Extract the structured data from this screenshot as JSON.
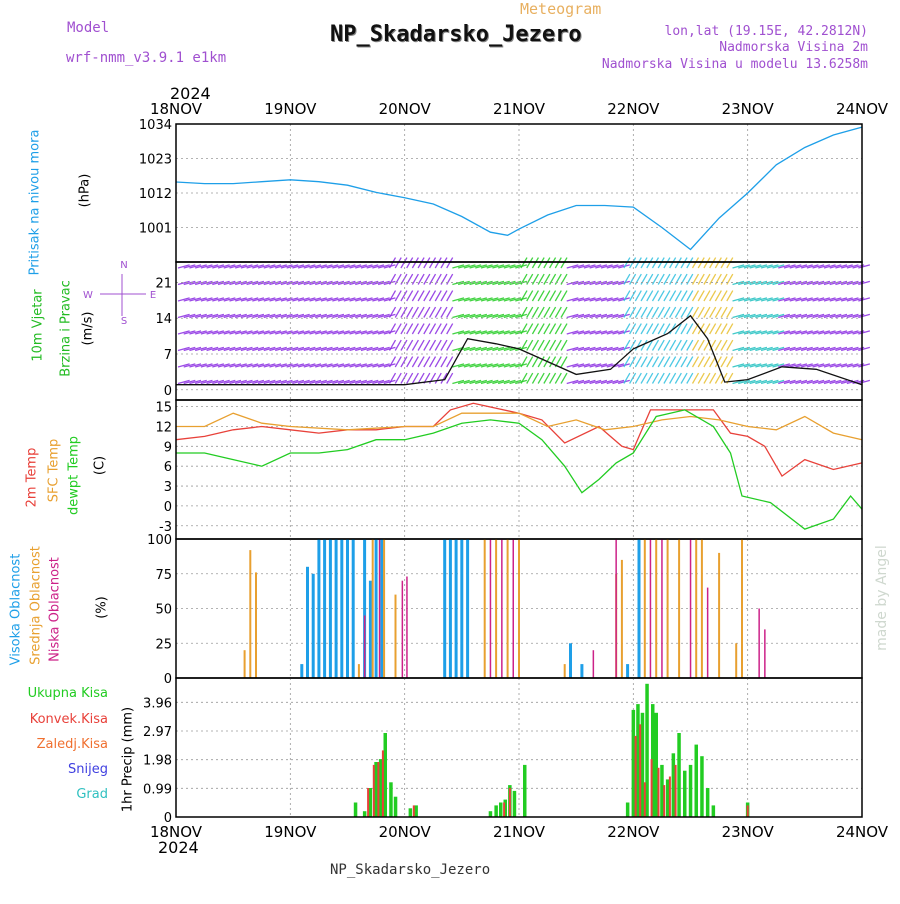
{
  "header": {
    "model_label": "Model",
    "model_name": "wrf-nmm_v3.9.1  e1km",
    "meteogram": "Meteogram",
    "station": "NP_Skadarsko_Jezero",
    "lonlat": "lon,lat (19.15E, 42.2812N)",
    "altitude": "Nadmorska Visina 2m",
    "model_altitude": "Nadmorska Visina u modelu 13.6258m",
    "footer_station": "NP_Skadarsko_Jezero",
    "watermark": "made by Angel"
  },
  "time_axis": {
    "year": "2024",
    "ticks": [
      "18NOV",
      "19NOV",
      "20NOV",
      "21NOV",
      "22NOV",
      "23NOV",
      "24NOV"
    ]
  },
  "colors": {
    "pressure": "#1e9fe8",
    "wind_label": "#22bb22",
    "temp2m": "#e8413a",
    "sfc_temp": "#e8a030",
    "dewpoint": "#22cc22",
    "high_cloud": "#1e9fe8",
    "mid_cloud": "#e8a030",
    "low_cloud": "#cc2288",
    "purple_text": "#a050d0",
    "total_precip": "#22cc22",
    "conv_precip": "#e8413a"
  },
  "chart_data": [
    {
      "type": "line",
      "panel": "pressure",
      "side_labels": [
        "Pritisak na nivou mora",
        "(hPa)"
      ],
      "ylim": [
        990,
        1034
      ],
      "yticks": [
        "1034",
        "1023",
        "1012",
        "1001"
      ],
      "ytick_values": [
        1034,
        1023,
        1012,
        1001
      ],
      "series": [
        {
          "x": [
            0,
            0.25,
            0.5,
            0.75,
            1.0,
            1.25,
            1.5,
            1.75,
            2.0,
            2.25,
            2.5,
            2.75,
            2.9,
            3.0,
            3.25,
            3.5,
            3.75,
            4.0,
            4.25,
            4.5,
            4.75,
            5.0,
            5.25,
            5.5,
            5.75,
            6.0
          ],
          "values": [
            1015.5,
            1015.0,
            1015.0,
            1015.6,
            1016.2,
            1015.6,
            1014.5,
            1012.2,
            1010.5,
            1008.5,
            1004.5,
            999.5,
            998.5,
            1000.5,
            1005.0,
            1008.0,
            1008.0,
            1007.5,
            1001.0,
            994.0,
            1004.0,
            1012.0,
            1021.0,
            1026.5,
            1030.5,
            1033.0
          ]
        }
      ]
    },
    {
      "type": "line",
      "panel": "wind",
      "side_labels": [
        "10m Vjetar",
        "Brzina i Pravac",
        "(m/s)"
      ],
      "compass": [
        "N",
        "E",
        "W",
        "S"
      ],
      "ylim": [
        -2,
        25
      ],
      "yticks": [
        "21",
        "14",
        "7",
        "0"
      ],
      "ytick_values": [
        21,
        14,
        7,
        0
      ],
      "series": [
        {
          "x": [
            0,
            1.0,
            2.0,
            2.35,
            2.55,
            2.8,
            3.0,
            3.5,
            3.8,
            4.0,
            4.3,
            4.5,
            4.65,
            4.8,
            5.0,
            5.3,
            5.6,
            6.0
          ],
          "values": [
            1.0,
            1.0,
            1.0,
            2.0,
            10.0,
            9.0,
            8.0,
            3.0,
            4.0,
            8.0,
            11.0,
            14.5,
            10.0,
            1.5,
            2.0,
            4.5,
            4.0,
            1.0
          ]
        }
      ]
    },
    {
      "type": "line",
      "panel": "temperature",
      "side_labels": [
        "2m Temp",
        "SFC Temp",
        "dewpt Temp",
        "(C)"
      ],
      "ylim": [
        -5,
        16
      ],
      "yticks": [
        "15",
        "12",
        "9",
        "6",
        "3",
        "0",
        "-3"
      ],
      "ytick_values": [
        15,
        12,
        9,
        6,
        3,
        0,
        -3
      ],
      "series": [
        {
          "name": "2m Temp",
          "x": [
            0,
            0.25,
            0.5,
            0.75,
            1.0,
            1.25,
            1.5,
            1.75,
            2.0,
            2.25,
            2.4,
            2.6,
            3.0,
            3.2,
            3.4,
            3.7,
            3.9,
            4.0,
            4.15,
            4.5,
            4.7,
            4.85,
            5.0,
            5.15,
            5.3,
            5.5,
            5.75,
            6.0
          ],
          "values": [
            10.0,
            10.5,
            11.5,
            12.0,
            11.5,
            11.0,
            11.5,
            11.5,
            12.0,
            12.0,
            14.5,
            15.5,
            14.0,
            13.0,
            9.5,
            12.0,
            9.0,
            8.5,
            14.5,
            14.5,
            14.5,
            11.0,
            10.5,
            9.0,
            4.5,
            7.0,
            5.5,
            6.5
          ]
        },
        {
          "name": "SFC Temp",
          "x": [
            0,
            0.25,
            0.5,
            0.75,
            1.0,
            1.5,
            2.0,
            2.25,
            2.5,
            3.0,
            3.25,
            3.5,
            3.75,
            4.0,
            4.25,
            4.5,
            4.75,
            5.0,
            5.25,
            5.5,
            5.75,
            6.0
          ],
          "values": [
            12.0,
            12.0,
            14.0,
            12.5,
            12.0,
            11.5,
            12.0,
            12.0,
            14.0,
            14.0,
            12.0,
            13.0,
            11.5,
            12.0,
            13.0,
            13.5,
            13.0,
            12.0,
            11.5,
            13.5,
            11.0,
            10.0
          ]
        },
        {
          "name": "dewpt Temp",
          "x": [
            0,
            0.25,
            0.5,
            0.75,
            1.0,
            1.25,
            1.5,
            1.75,
            2.0,
            2.25,
            2.5,
            2.75,
            3.0,
            3.2,
            3.4,
            3.55,
            3.7,
            3.85,
            4.0,
            4.2,
            4.45,
            4.5,
            4.7,
            4.85,
            4.95,
            5.2,
            5.5,
            5.75,
            5.9,
            6.0
          ],
          "values": [
            8.0,
            8.0,
            7.0,
            6.0,
            8.0,
            8.0,
            8.5,
            10.0,
            10.0,
            11.0,
            12.5,
            13.0,
            12.5,
            10.0,
            6.0,
            2.0,
            4.0,
            6.5,
            8.0,
            13.5,
            14.5,
            14.0,
            12.0,
            8.0,
            1.5,
            0.5,
            -3.5,
            -2.0,
            1.5,
            -0.5
          ]
        }
      ]
    },
    {
      "type": "bar",
      "panel": "clouds",
      "side_labels": [
        "Visoka Oblacnost",
        "Srednja Oblacnost",
        "Niska Oblacnost",
        "(%)"
      ],
      "ylim": [
        0,
        100
      ],
      "yticks": [
        "100",
        "75",
        "50",
        "25",
        "0"
      ],
      "ytick_values": [
        100,
        75,
        50,
        25,
        0
      ],
      "series": [
        {
          "name": "Visoka Oblacnost",
          "x": [
            1.1,
            1.15,
            1.2,
            1.25,
            1.3,
            1.35,
            1.4,
            1.45,
            1.5,
            1.55,
            1.65,
            1.7,
            1.75,
            1.8,
            2.35,
            2.4,
            2.45,
            2.5,
            2.55,
            3.45,
            3.55,
            3.95,
            4.05
          ],
          "values": [
            10,
            80,
            75,
            100,
            100,
            100,
            100,
            100,
            100,
            100,
            100,
            70,
            100,
            100,
            100,
            100,
            100,
            100,
            100,
            25,
            10,
            10,
            100
          ]
        },
        {
          "name": "Srednja Oblacnost",
          "x": [
            0.6,
            0.65,
            0.7,
            1.6,
            1.72,
            1.82,
            1.92,
            2.7,
            2.8,
            2.9,
            3.0,
            3.4,
            3.85,
            3.9,
            4.1,
            4.2,
            4.3,
            4.4,
            4.55,
            4.6,
            4.75,
            4.9,
            4.95
          ],
          "values": [
            20,
            92,
            76,
            10,
            100,
            100,
            60,
            100,
            100,
            100,
            100,
            10,
            75,
            85,
            100,
            100,
            100,
            100,
            100,
            100,
            90,
            25,
            100
          ]
        },
        {
          "name": "Niska Oblacnost",
          "x": [
            1.65,
            1.78,
            1.98,
            2.02,
            2.75,
            2.85,
            2.95,
            3.65,
            3.85,
            4.15,
            4.25,
            4.5,
            4.65,
            5.1,
            5.15
          ],
          "values": [
            45,
            100,
            70,
            73,
            100,
            100,
            100,
            20,
            100,
            100,
            100,
            100,
            65,
            50,
            35
          ]
        }
      ]
    },
    {
      "type": "bar",
      "panel": "precipitation",
      "side_labels": [
        "1hr Precip (mm)"
      ],
      "legend": [
        "Ukupna Kisa",
        "Konvek.Kisa",
        "Zaledj.Kisa",
        "Snijeg",
        "Grad"
      ],
      "ylim": [
        0,
        4.8
      ],
      "yticks": [
        "3.96",
        "2.97",
        "1.98",
        "0.99",
        "0"
      ],
      "ytick_values": [
        3.96,
        2.97,
        1.98,
        0.99,
        0
      ],
      "series": [
        {
          "name": "Ukupna Kisa",
          "x": [
            1.57,
            1.65,
            1.7,
            1.75,
            1.79,
            1.83,
            1.88,
            1.92,
            2.05,
            2.1,
            2.75,
            2.8,
            2.84,
            2.88,
            2.92,
            2.96,
            3.05,
            3.95,
            4.0,
            4.04,
            4.08,
            4.12,
            4.17,
            4.2,
            4.25,
            4.3,
            4.35,
            4.4,
            4.45,
            4.5,
            4.55,
            4.6,
            4.65,
            4.7,
            5.0
          ],
          "values": [
            0.5,
            0.2,
            1.0,
            1.9,
            2.0,
            2.9,
            1.2,
            0.7,
            0.3,
            0.4,
            0.2,
            0.4,
            0.5,
            0.6,
            1.1,
            0.9,
            1.8,
            0.5,
            3.7,
            3.9,
            3.6,
            4.6,
            3.9,
            3.6,
            1.8,
            1.3,
            2.2,
            2.9,
            1.6,
            1.8,
            2.5,
            2.1,
            1.0,
            0.4,
            0.5
          ]
        },
        {
          "name": "Konvek.Kisa",
          "x": [
            1.68,
            1.73,
            1.77,
            1.81,
            2.08,
            2.87,
            2.92,
            4.02,
            4.06,
            4.1,
            4.16,
            4.22,
            4.27,
            4.32,
            4.37,
            5.0
          ],
          "values": [
            1.0,
            1.8,
            1.9,
            2.3,
            0.4,
            0.5,
            1.0,
            2.8,
            3.2,
            1.2,
            2.0,
            1.7,
            1.1,
            1.4,
            1.8,
            0.4
          ]
        }
      ]
    }
  ]
}
